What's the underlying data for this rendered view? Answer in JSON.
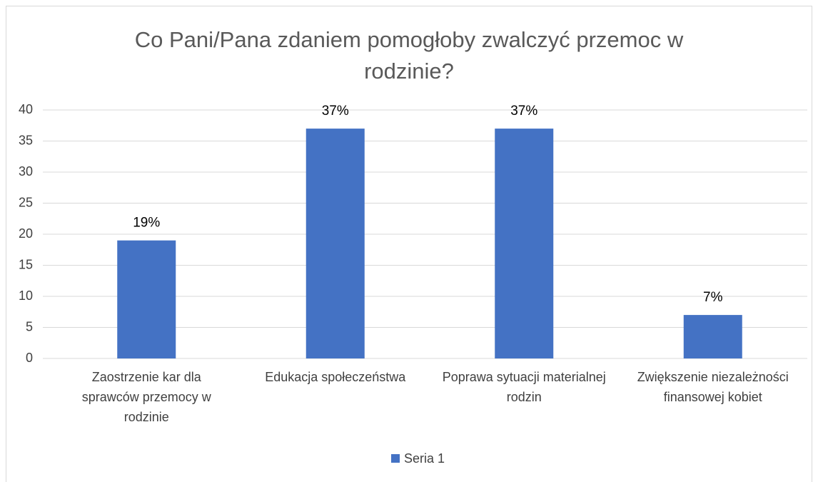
{
  "chart_data": {
    "type": "bar",
    "title": "Co Pani/Pana zdaniem pomogłoby zwalczyć przemoc w rodzinie?",
    "categories": [
      "Zaostrzenie kar dla sprawców przemocy w rodzinie",
      "Edukacja społeczeństwa",
      "Poprawa sytuacji materialnej rodzin",
      "Zwiększenie niezależności finansowej kobiet"
    ],
    "series": [
      {
        "name": "Seria 1",
        "color": "#4472c4",
        "values": [
          19,
          37,
          37,
          7
        ],
        "value_labels": [
          "19%",
          "37%",
          "37%",
          "7%"
        ]
      }
    ],
    "ylim": [
      0,
      40
    ],
    "yticks": [
      0,
      5,
      10,
      15,
      20,
      25,
      30,
      35,
      40
    ],
    "grid": true,
    "legend": "bottom"
  }
}
